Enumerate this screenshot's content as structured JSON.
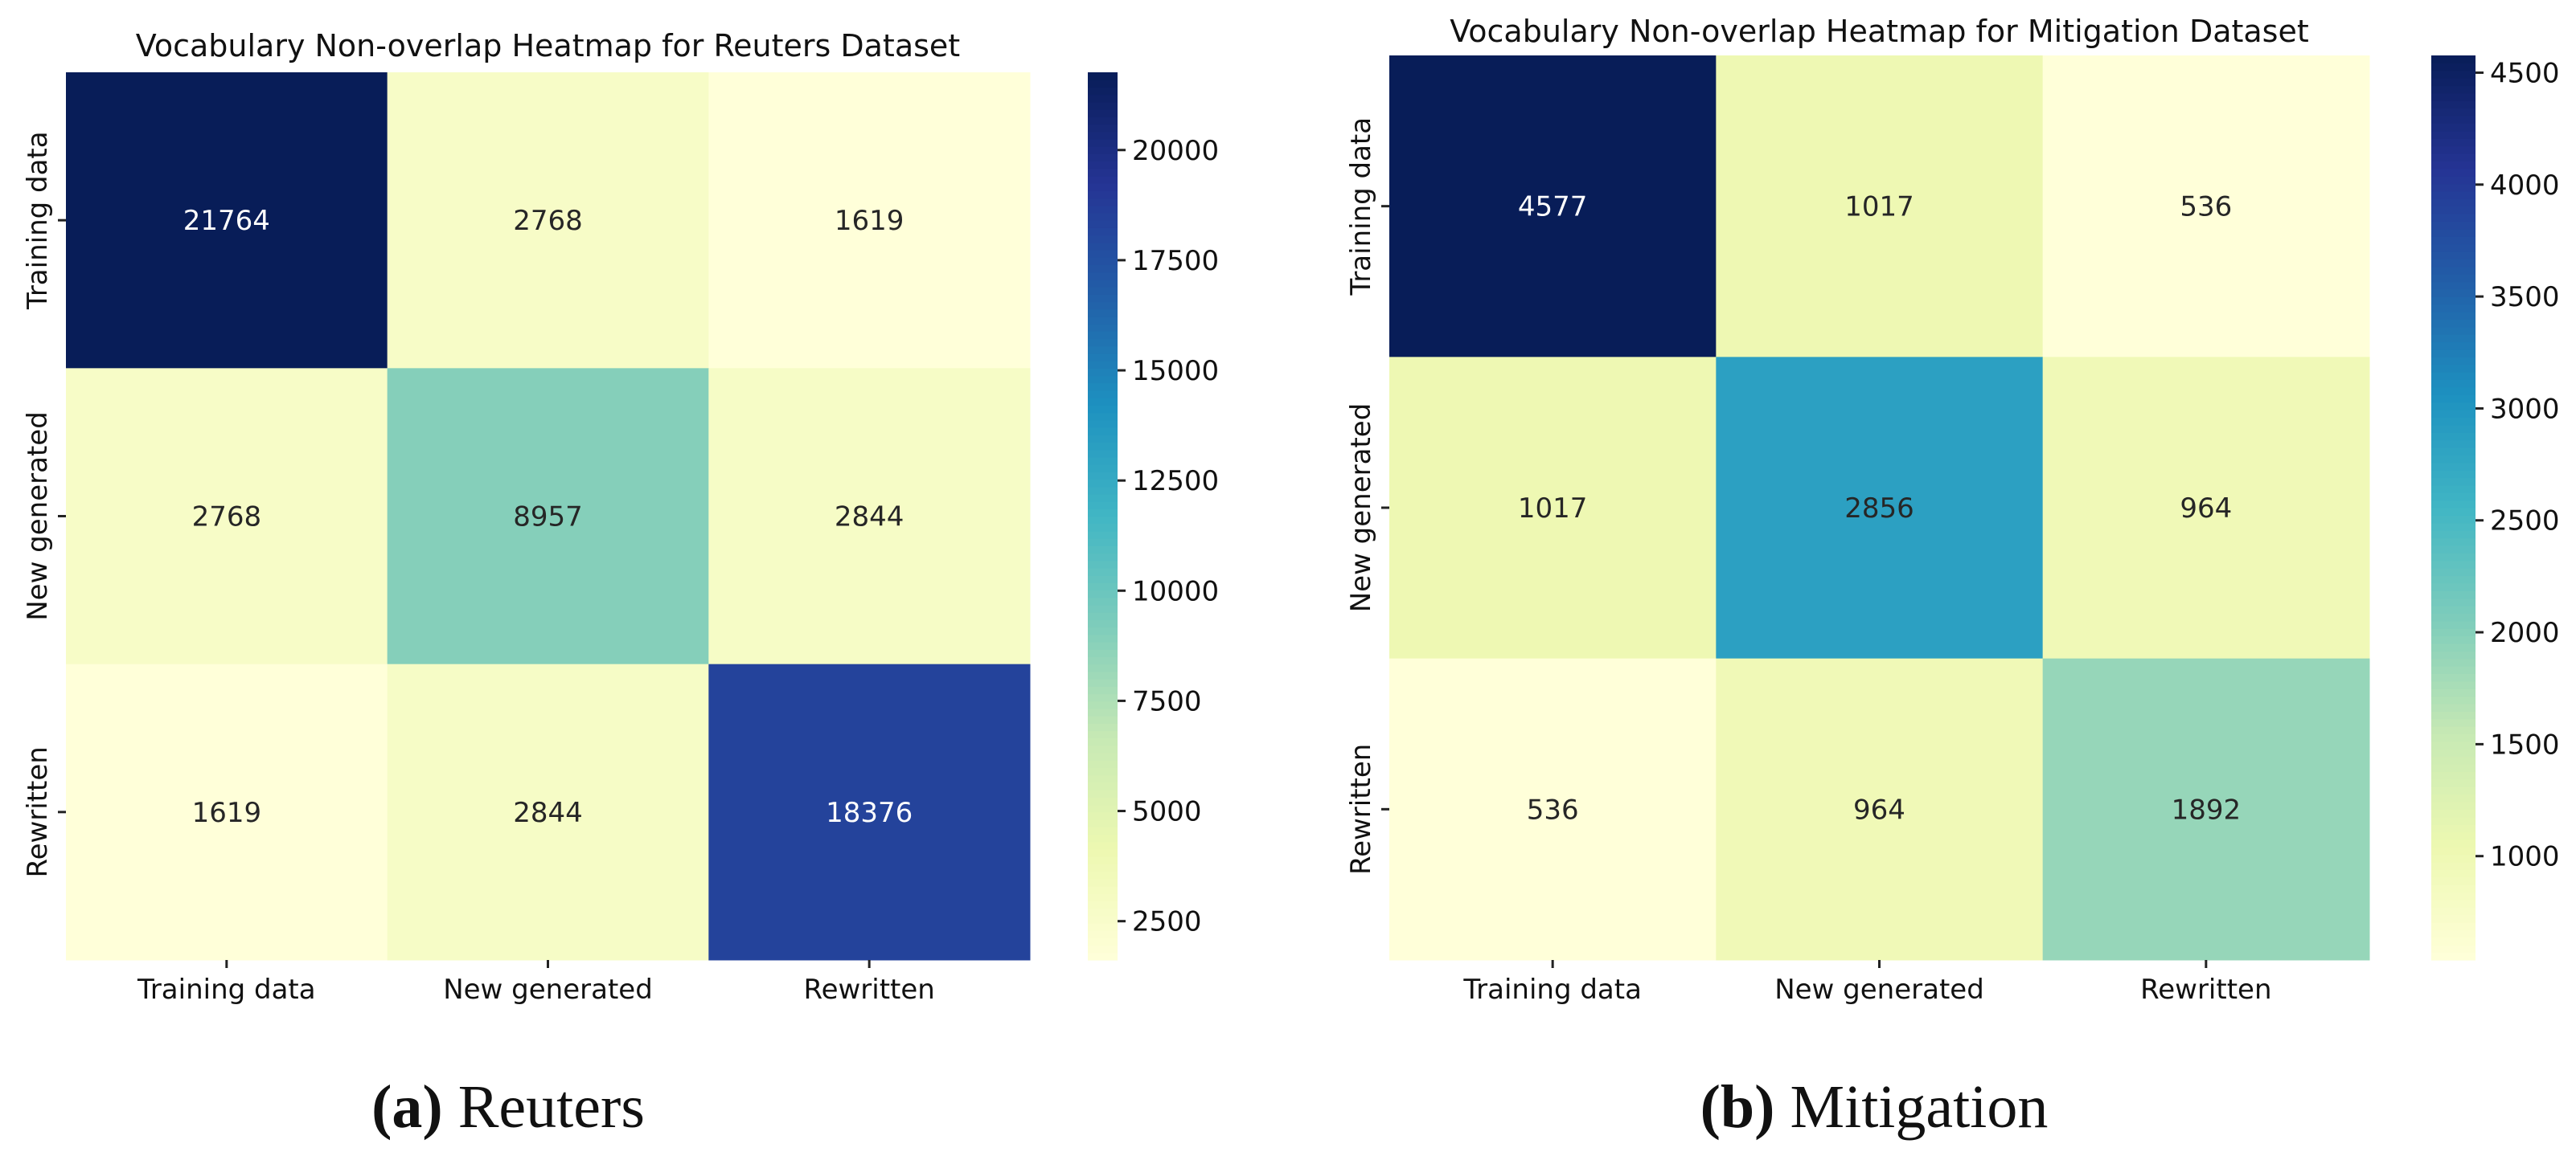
{
  "chart_data": [
    {
      "type": "heatmap",
      "title": "Vocabulary Non-overlap Heatmap for Reuters Dataset",
      "row_labels": [
        "Training data",
        "New generated",
        "Rewritten"
      ],
      "col_labels": [
        "Training data",
        "New generated",
        "Rewritten"
      ],
      "values": [
        [
          21764,
          2768,
          1619
        ],
        [
          2768,
          8957,
          2844
        ],
        [
          1619,
          2844,
          18376
        ]
      ],
      "colormap": "YlGnBu",
      "vmin": 1619,
      "vmax": 21764,
      "colorbar_ticks": [
        2500,
        5000,
        7500,
        10000,
        12500,
        15000,
        17500,
        20000
      ],
      "caption_letter": "(a)",
      "caption_text": "Reuters"
    },
    {
      "type": "heatmap",
      "title": "Vocabulary Non-overlap Heatmap for Mitigation Dataset",
      "row_labels": [
        "Training data",
        "New generated",
        "Rewritten"
      ],
      "col_labels": [
        "Training data",
        "New generated",
        "Rewritten"
      ],
      "values": [
        [
          4577,
          1017,
          536
        ],
        [
          1017,
          2856,
          964
        ],
        [
          536,
          964,
          1892
        ]
      ],
      "colormap": "YlGnBu",
      "vmin": 536,
      "vmax": 4577,
      "colorbar_ticks": [
        1000,
        1500,
        2000,
        2500,
        3000,
        3500,
        4000,
        4500
      ],
      "caption_letter": "(b)",
      "caption_text": "Mitigation"
    }
  ],
  "colormap_stops": [
    "#ffffd9",
    "#edf8b1",
    "#c7e9b4",
    "#7fcdbb",
    "#41b6c4",
    "#1d91c0",
    "#225ea8",
    "#253494",
    "#081d58"
  ]
}
